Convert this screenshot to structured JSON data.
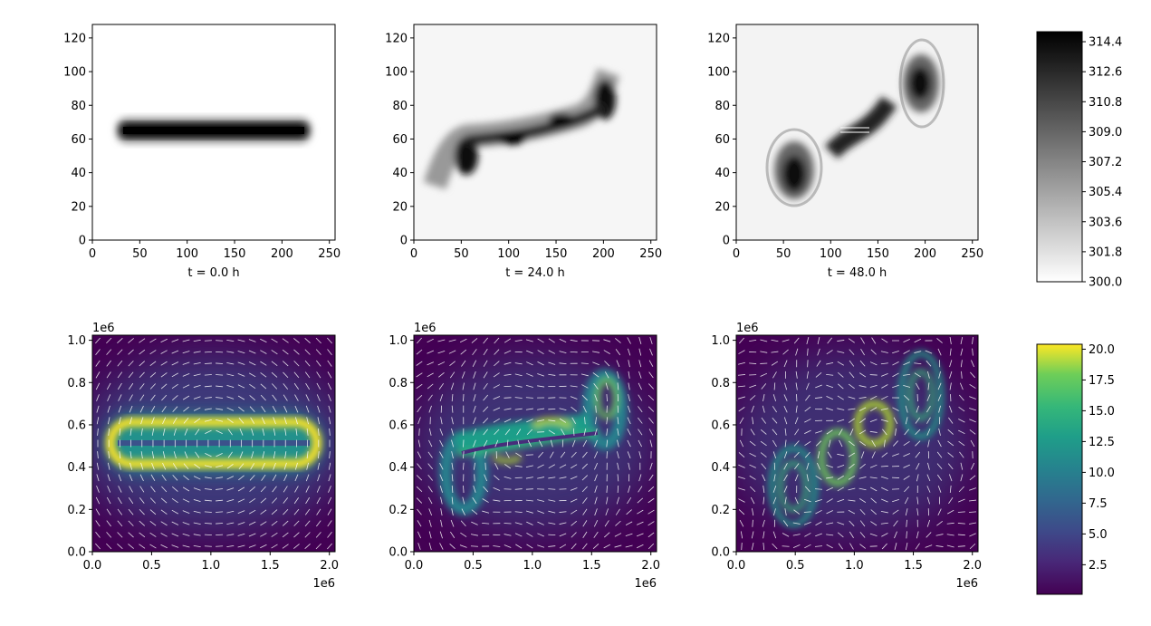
{
  "chart_data": {
    "type": "heatmap",
    "title": "",
    "top_row": [
      {
        "xlabel": "t = 0.0 h",
        "xticks": [
          0,
          50,
          100,
          150,
          200,
          250
        ],
        "yticks": [
          0,
          20,
          40,
          60,
          80,
          100,
          120
        ],
        "xlim": [
          0,
          256
        ],
        "ylim": [
          0,
          128
        ]
      },
      {
        "xlabel": "t = 24.0 h",
        "xticks": [
          0,
          50,
          100,
          150,
          200,
          250
        ],
        "yticks": [
          0,
          20,
          40,
          60,
          80,
          100,
          120
        ],
        "xlim": [
          0,
          256
        ],
        "ylim": [
          0,
          128
        ]
      },
      {
        "xlabel": "t = 48.0 h",
        "xticks": [
          0,
          50,
          100,
          150,
          200,
          250
        ],
        "yticks": [
          0,
          20,
          40,
          60,
          80,
          100,
          120
        ],
        "xlim": [
          0,
          256
        ],
        "ylim": [
          0,
          128
        ]
      }
    ],
    "bottom_row": [
      {
        "xticks": [
          "0.0",
          "0.5",
          "1.0",
          "1.5",
          "2.0"
        ],
        "yticks": [
          "0.0",
          "0.2",
          "0.4",
          "0.6",
          "0.8",
          "1.0"
        ],
        "offset_x": "1e6",
        "offset_y": "1e6",
        "xlim": [
          0,
          2.048
        ],
        "ylim": [
          0,
          1.024
        ]
      },
      {
        "xticks": [
          "0.0",
          "0.5",
          "1.0",
          "1.5",
          "2.0"
        ],
        "yticks": [
          "0.0",
          "0.2",
          "0.4",
          "0.6",
          "0.8",
          "1.0"
        ],
        "offset_x": "1e6",
        "offset_y": "1e6",
        "xlim": [
          0,
          2.048
        ],
        "ylim": [
          0,
          1.024
        ]
      },
      {
        "xticks": [
          "0.0",
          "0.5",
          "1.0",
          "1.5",
          "2.0"
        ],
        "yticks": [
          "0.0",
          "0.2",
          "0.4",
          "0.6",
          "0.8",
          "1.0"
        ],
        "offset_x": "1e6",
        "offset_y": "1e6",
        "xlim": [
          0,
          2.048
        ],
        "ylim": [
          0,
          1.024
        ]
      }
    ],
    "colorbar_top": {
      "colormap": "gray_r",
      "ticks": [
        "300.0",
        "301.8",
        "303.6",
        "305.4",
        "307.2",
        "309.0",
        "310.8",
        "312.6",
        "314.4"
      ],
      "range": [
        300,
        315
      ]
    },
    "colorbar_bottom": {
      "colormap": "viridis",
      "ticks": [
        "2.5",
        "5.0",
        "7.5",
        "10.0",
        "12.5",
        "15.0",
        "17.5",
        "20.0"
      ],
      "range": [
        0.1,
        20.4
      ]
    }
  }
}
